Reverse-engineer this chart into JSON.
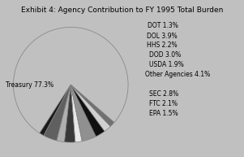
{
  "title": "Exhibit 4: Agency Contribution to FY 1995 Total Burden",
  "slices": [
    {
      "label": "Treasury 77.3%",
      "value": 77.3,
      "color": "#c0c0c0"
    },
    {
      "label": "DOT 1.3%",
      "value": 1.3,
      "color": "#1a1a1a"
    },
    {
      "label": "DOL 3.9%",
      "value": 3.9,
      "color": "#606060"
    },
    {
      "label": "HHS 2.2%",
      "value": 2.2,
      "color": "#b0b0b0"
    },
    {
      "label": "DOD 3.0%",
      "value": 3.0,
      "color": "#383838"
    },
    {
      "label": "USDA 1.9%",
      "value": 1.9,
      "color": "#e8e8e8"
    },
    {
      "label": "Other Agencies 4.1%",
      "value": 4.1,
      "color": "#909090"
    },
    {
      "label": "SEC 2.8%",
      "value": 2.8,
      "color": "#101010"
    },
    {
      "label": "FTC 2.1%",
      "value": 2.1,
      "color": "#d0d0d0"
    },
    {
      "label": "EPA 1.5%",
      "value": 1.5,
      "color": "#707070"
    }
  ],
  "background_color": "#c0c0c0",
  "title_fontsize": 6.5,
  "label_fontsize": 5.5,
  "right_labels": [
    "DOT 1.3%",
    "DOL 3.9%",
    "HHS 2.2%",
    "DOD 3.0%",
    "USDA 1.9%",
    "Other Agencies 4.1%",
    "SEC 2.8%",
    "FTC 2.1%",
    "EPA 1.5%"
  ]
}
